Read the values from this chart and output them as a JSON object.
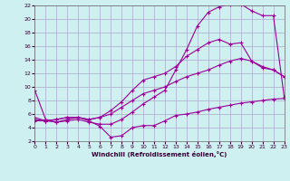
{
  "xlabel": "Windchill (Refroidissement éolien,°C)",
  "bg_color": "#cef0f0",
  "line_color": "#990099",
  "grid_color": "#aaaacc",
  "xlim": [
    0,
    23
  ],
  "ylim": [
    2,
    22
  ],
  "yticks": [
    2,
    4,
    6,
    8,
    10,
    12,
    14,
    16,
    18,
    20,
    22
  ],
  "xticks": [
    0,
    1,
    2,
    3,
    4,
    5,
    6,
    7,
    8,
    9,
    10,
    11,
    12,
    13,
    14,
    15,
    16,
    17,
    18,
    19,
    20,
    21,
    22,
    23
  ],
  "line1_x": [
    0,
    1,
    2,
    3,
    4,
    5,
    6,
    7,
    8,
    9,
    10,
    11,
    12,
    13,
    14,
    15,
    16,
    17,
    18,
    19,
    20,
    21,
    22,
    23
  ],
  "line1_y": [
    9.5,
    5.2,
    4.8,
    5.2,
    5.5,
    5.0,
    4.2,
    2.6,
    2.8,
    4.0,
    4.3,
    4.3,
    5.0,
    5.8,
    6.0,
    6.3,
    6.7,
    7.0,
    7.3,
    7.6,
    7.8,
    8.0,
    8.2,
    8.3
  ],
  "line2_x": [
    0,
    1,
    2,
    3,
    4,
    5,
    6,
    7,
    8,
    9,
    10,
    11,
    12,
    13,
    14,
    15,
    16,
    17,
    18,
    19,
    20,
    21,
    22,
    23
  ],
  "line2_y": [
    5.5,
    5.0,
    4.8,
    5.0,
    5.2,
    4.8,
    4.5,
    4.5,
    5.2,
    6.3,
    7.5,
    8.5,
    9.5,
    12.5,
    15.5,
    19.0,
    21.0,
    21.8,
    22.2,
    22.2,
    21.2,
    20.5,
    20.5,
    8.5
  ],
  "line3_x": [
    0,
    1,
    2,
    3,
    4,
    5,
    6,
    7,
    8,
    9,
    10,
    11,
    12,
    13,
    14,
    15,
    16,
    17,
    18,
    19,
    20,
    21,
    22,
    23
  ],
  "line3_y": [
    5.2,
    5.0,
    5.2,
    5.5,
    5.5,
    5.2,
    5.5,
    6.5,
    7.8,
    9.5,
    11.0,
    11.5,
    12.0,
    13.0,
    14.5,
    15.5,
    16.5,
    17.0,
    16.3,
    16.5,
    13.8,
    12.8,
    12.5,
    11.5
  ],
  "line4_x": [
    0,
    1,
    2,
    3,
    4,
    5,
    6,
    7,
    8,
    9,
    10,
    11,
    12,
    13,
    14,
    15,
    16,
    17,
    18,
    19,
    20,
    21,
    22,
    23
  ],
  "line4_y": [
    5.0,
    5.0,
    5.2,
    5.5,
    5.5,
    5.2,
    5.5,
    6.0,
    7.0,
    8.0,
    9.0,
    9.5,
    10.0,
    10.8,
    11.5,
    12.0,
    12.5,
    13.2,
    13.8,
    14.2,
    13.8,
    13.0,
    12.5,
    11.5
  ]
}
